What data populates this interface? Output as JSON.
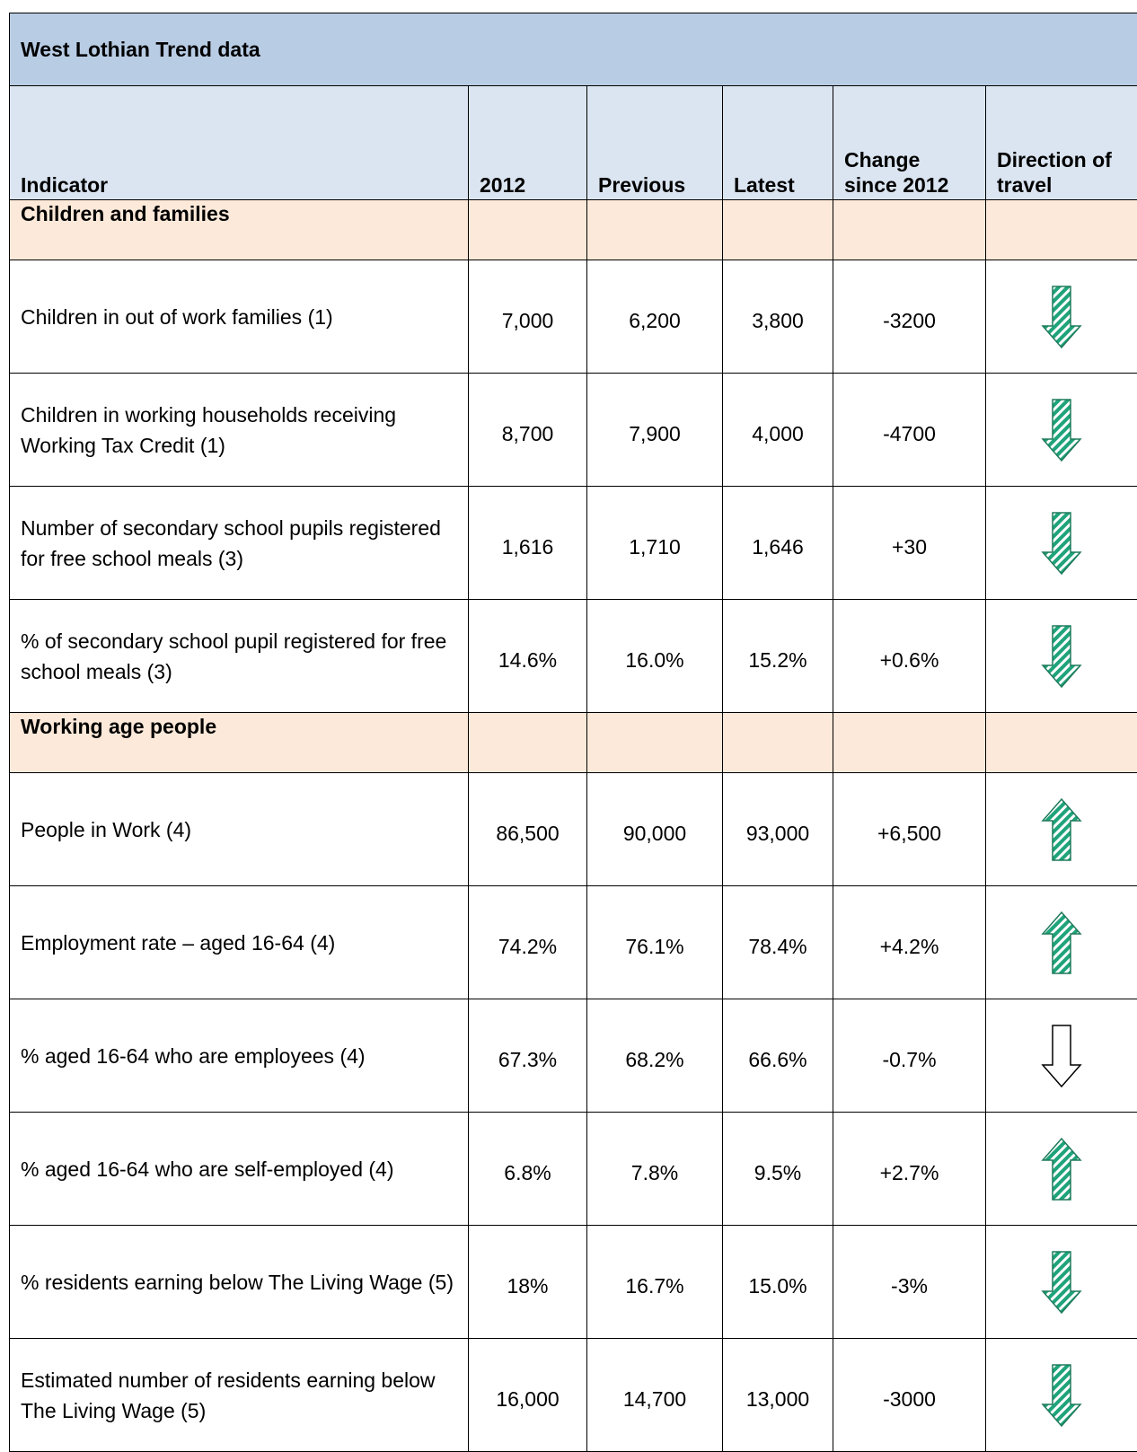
{
  "title": "West Lothian Trend data",
  "columns": [
    "Indicator",
    "2012",
    "Previous",
    "Latest",
    "Change since 2012",
    "Direction of travel"
  ],
  "sections": [
    {
      "name": "Children and families",
      "rows": [
        {
          "indicator": "Children in out of work families (1)",
          "values": [
            "7,000",
            "6,200",
            "3,800",
            "-3200"
          ],
          "direction": "down",
          "arrow_fill": "hatched"
        },
        {
          "indicator": "Children in working households receiving Working Tax Credit (1)",
          "values": [
            "8,700",
            "7,900",
            "4,000",
            "-4700"
          ],
          "direction": "down",
          "arrow_fill": "hatched"
        },
        {
          "indicator": "Number of secondary school pupils registered for free school meals (3)",
          "values": [
            "1,616",
            "1,710",
            "1,646",
            "+30"
          ],
          "direction": "down",
          "arrow_fill": "hatched"
        },
        {
          "indicator": "% of secondary school pupil registered for free school meals (3)",
          "values": [
            "14.6%",
            "16.0%",
            "15.2%",
            "+0.6%"
          ],
          "direction": "down",
          "arrow_fill": "hatched"
        }
      ]
    },
    {
      "name": "Working age people",
      "rows": [
        {
          "indicator": "People in Work (4)",
          "values": [
            "86,500",
            "90,000",
            "93,000",
            "+6,500"
          ],
          "direction": "up",
          "arrow_fill": "hatched"
        },
        {
          "indicator": "Employment rate – aged 16-64 (4)",
          "values": [
            "74.2%",
            "76.1%",
            "78.4%",
            "+4.2%"
          ],
          "direction": "up",
          "arrow_fill": "hatched"
        },
        {
          "indicator": "% aged 16-64 who are employees (4)",
          "values": [
            "67.3%",
            "68.2%",
            "66.6%",
            "-0.7%"
          ],
          "direction": "down",
          "arrow_fill": "white"
        },
        {
          "indicator": "% aged 16-64 who are self-employed (4)",
          "values": [
            "6.8%",
            "7.8%",
            "9.5%",
            "+2.7%"
          ],
          "direction": "up",
          "arrow_fill": "hatched"
        },
        {
          "indicator": "% residents earning below The Living Wage (5)",
          "values": [
            "18%",
            "16.7%",
            "15.0%",
            "-3%"
          ],
          "direction": "down",
          "arrow_fill": "hatched"
        },
        {
          "indicator": "Estimated number of residents earning below The Living Wage (5)",
          "values": [
            "16,000",
            "14,700",
            "13,000",
            "-3000"
          ],
          "direction": "down",
          "arrow_fill": "hatched"
        }
      ]
    }
  ]
}
